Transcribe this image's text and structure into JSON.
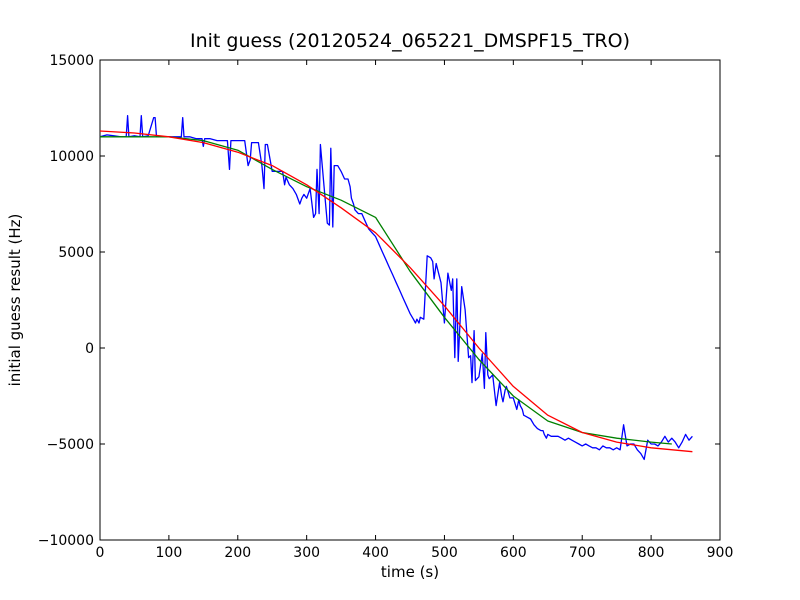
{
  "chart_data": {
    "type": "line",
    "title": "Init guess (20120524_065221_DMSPF15_TRO)",
    "xlabel": "time (s)",
    "ylabel": "initial guess result (Hz)",
    "xlim": [
      0,
      900
    ],
    "ylim": [
      -10000,
      15000
    ],
    "xticks": [
      0,
      100,
      200,
      300,
      400,
      500,
      600,
      700,
      800,
      900
    ],
    "yticks": [
      -10000,
      -5000,
      0,
      5000,
      10000,
      15000
    ],
    "grid": false,
    "legend": "none",
    "series": [
      {
        "color": "#0000ff",
        "x": [
          0,
          10,
          20,
          30,
          38,
          40,
          42,
          50,
          58,
          60,
          62,
          70,
          78,
          80,
          82,
          90,
          100,
          110,
          118,
          120,
          122,
          130,
          140,
          148,
          150,
          152,
          160,
          170,
          180,
          185,
          188,
          190,
          200,
          210,
          215,
          218,
          220,
          230,
          235,
          238,
          240,
          243,
          250,
          260,
          265,
          268,
          270,
          275,
          280,
          285,
          290,
          293,
          296,
          300,
          305,
          310,
          313,
          315,
          318,
          320,
          325,
          330,
          333,
          335,
          338,
          340,
          345,
          350,
          355,
          360,
          363,
          365,
          368,
          370,
          375,
          380,
          385,
          390,
          395,
          400,
          405,
          410,
          415,
          420,
          425,
          430,
          435,
          440,
          445,
          450,
          455,
          458,
          460,
          463,
          465,
          470,
          475,
          480,
          483,
          485,
          488,
          490,
          495,
          500,
          505,
          510,
          512,
          515,
          518,
          520,
          525,
          530,
          535,
          538,
          540,
          543,
          545,
          550,
          555,
          558,
          560,
          563,
          565,
          570,
          575,
          580,
          583,
          585,
          588,
          590,
          595,
          600,
          605,
          608,
          610,
          613,
          615,
          620,
          625,
          630,
          635,
          640,
          643,
          645,
          648,
          650,
          655,
          660,
          665,
          670,
          675,
          680,
          685,
          690,
          695,
          700,
          705,
          710,
          715,
          720,
          725,
          730,
          735,
          740,
          745,
          750,
          755,
          760,
          765,
          770,
          775,
          780,
          785,
          790,
          795,
          800,
          805,
          810,
          815,
          820,
          825,
          830,
          835,
          840,
          845,
          850,
          855,
          860
        ],
        "y": [
          11000,
          11100,
          11050,
          11000,
          11000,
          12100,
          11000,
          11050,
          11000,
          12100,
          11000,
          11050,
          12000,
          12000,
          11000,
          11000,
          11000,
          11000,
          11000,
          12000,
          11000,
          11000,
          10900,
          10900,
          10500,
          10900,
          10900,
          10800,
          10800,
          10800,
          9300,
          10800,
          10800,
          10800,
          9500,
          9800,
          10700,
          10700,
          9500,
          8300,
          10600,
          10600,
          9200,
          9200,
          9200,
          8500,
          8900,
          8500,
          8300,
          8000,
          7500,
          7800,
          8000,
          7800,
          8300,
          6800,
          7000,
          9300,
          7000,
          10600,
          8500,
          6500,
          6400,
          10400,
          6300,
          9500,
          9500,
          9200,
          8800,
          8800,
          8400,
          7800,
          7500,
          7200,
          7000,
          7000,
          6600,
          6200,
          6000,
          5800,
          5400,
          5000,
          4600,
          4200,
          3800,
          3400,
          3000,
          2600,
          2200,
          1800,
          1500,
          1300,
          1500,
          1300,
          1600,
          1500,
          4800,
          4700,
          4500,
          3600,
          4400,
          4100,
          3400,
          1300,
          3900,
          3000,
          3600,
          -500,
          3600,
          -700,
          3200,
          2000,
          -500,
          -400,
          -1800,
          900,
          -1700,
          -1500,
          -300,
          -2100,
          800,
          -1400,
          -1600,
          -1400,
          -3000,
          -1800,
          -2500,
          -2800,
          -2200,
          -2000,
          -2600,
          -2600,
          -3200,
          -2700,
          -3000,
          -3200,
          -3500,
          -3600,
          -3700,
          -4000,
          -4200,
          -4300,
          -4300,
          -4500,
          -4700,
          -4500,
          -4600,
          -4600,
          -4600,
          -4700,
          -4800,
          -4700,
          -4800,
          -4900,
          -5000,
          -5100,
          -5000,
          -5100,
          -5200,
          -5200,
          -5300,
          -5100,
          -5200,
          -5200,
          -5300,
          -5200,
          -5300,
          -4000,
          -5100,
          -5000,
          -5000,
          -5300,
          -5500,
          -5800,
          -4800,
          -5000,
          -5000,
          -5100,
          -4900,
          -4600,
          -4900,
          -4700,
          -4900,
          -5200,
          -4900,
          -4500,
          -4800,
          -4600
        ]
      },
      {
        "color": "#008000",
        "x": [
          0,
          50,
          100,
          150,
          200,
          250,
          300,
          350,
          400,
          450,
          500,
          550,
          600,
          650,
          700,
          750,
          800,
          830
        ],
        "y": [
          11000,
          11000,
          11000,
          10800,
          10300,
          9300,
          8400,
          7700,
          6800,
          4000,
          1600,
          -600,
          -2500,
          -3800,
          -4400,
          -4700,
          -4900,
          -5000
        ]
      },
      {
        "color": "#ff0000",
        "x": [
          0,
          50,
          100,
          150,
          200,
          250,
          300,
          350,
          400,
          450,
          500,
          550,
          600,
          650,
          700,
          750,
          800,
          860
        ],
        "y": [
          11300,
          11200,
          11000,
          10700,
          10200,
          9500,
          8500,
          7300,
          6000,
          4200,
          2200,
          0,
          -2000,
          -3500,
          -4400,
          -4900,
          -5200,
          -5400
        ]
      }
    ]
  }
}
